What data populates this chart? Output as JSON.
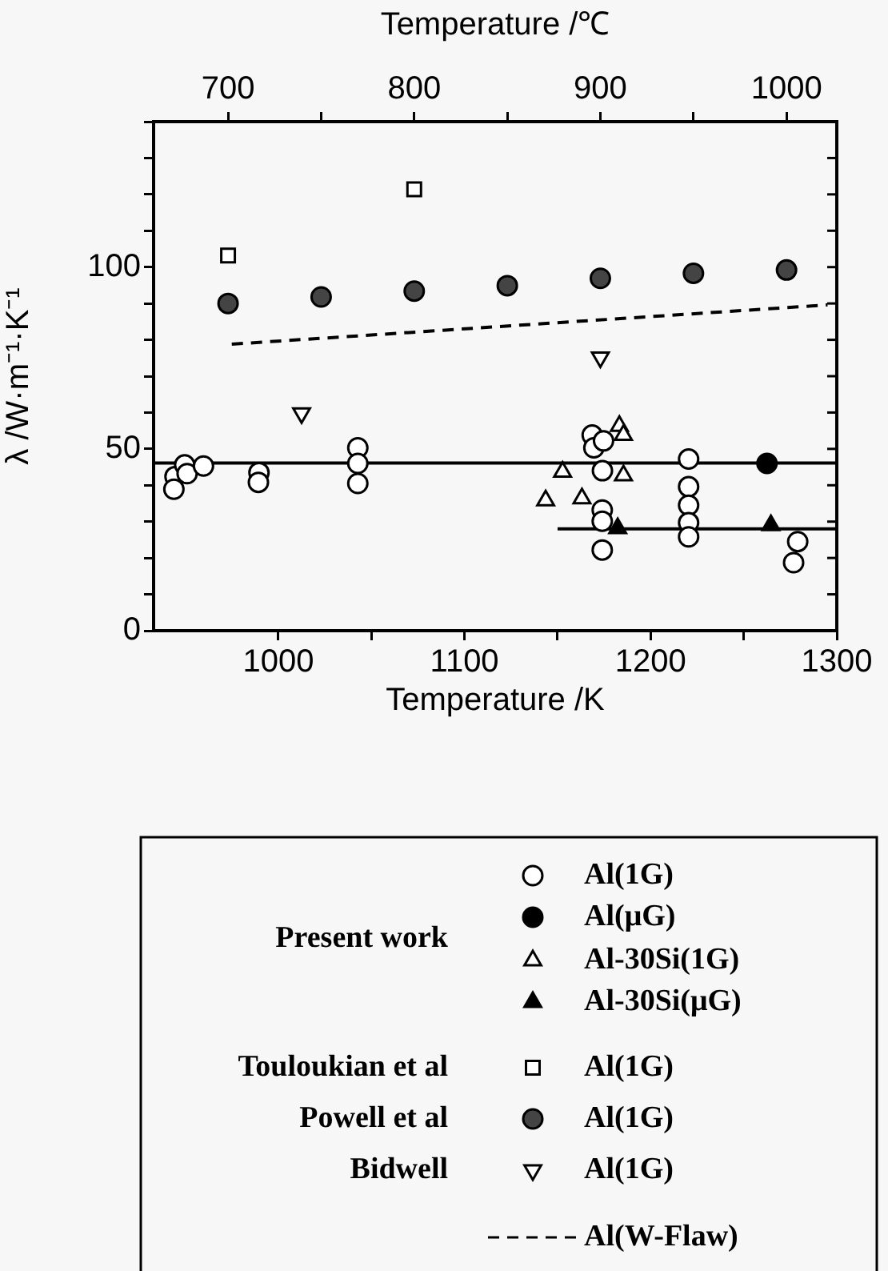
{
  "chart_data": {
    "type": "scatter",
    "xlabel": "Temperature /K",
    "x2label": "Temperature /℃",
    "ylabel": "λ /W·m⁻¹·K⁻¹",
    "xlim": [
      933,
      1300
    ],
    "xticks": [
      1000,
      {
        "value": 1050,
        "label": null
      },
      1100,
      {
        "value": 1150,
        "label": null
      },
      1200,
      {
        "value": 1250,
        "label": null
      },
      1300
    ],
    "x2lim": [
      660,
      1027
    ],
    "x2ticks": [
      700,
      {
        "value": 750,
        "label": null
      },
      800,
      {
        "value": 850,
        "label": null
      },
      900,
      {
        "value": 950,
        "label": null
      },
      1000
    ],
    "ylim": [
      0,
      140
    ],
    "yticks": [
      0,
      {
        "value": 10,
        "label": null
      },
      {
        "value": 20,
        "label": null
      },
      {
        "value": 30,
        "label": null
      },
      {
        "value": 40,
        "label": null
      },
      50,
      {
        "value": 60,
        "label": null
      },
      {
        "value": 70,
        "label": null
      },
      {
        "value": 80,
        "label": null
      },
      {
        "value": 90,
        "label": null
      },
      100,
      {
        "value": 110,
        "label": null
      },
      {
        "value": 120,
        "label": null
      },
      {
        "value": 130,
        "label": null
      },
      {
        "value": 140,
        "label": null
      }
    ],
    "grid": false,
    "legend": "bottom",
    "annotations": [
      "Present work",
      "Touloukian et al",
      "Powell et al",
      "Bidwell"
    ],
    "series": [
      {
        "name": "Al(1G)",
        "type": "scatter",
        "marker": "circle-open",
        "color": "#000000",
        "x": [
          944.5,
          943.9,
          949.7,
          951,
          959.8,
          989.6,
          989.3,
          1042.7,
          1042.7,
          1042.7,
          1168.6,
          1169.5,
          1174.7,
          1174.1,
          1174,
          1174,
          1174,
          1220.4,
          1220.4,
          1220.4,
          1220.4,
          1220.4,
          1279,
          1276.8
        ],
        "values": [
          42.4,
          38.9,
          45.6,
          43.2,
          45.3,
          43.5,
          40.8,
          50.3,
          46,
          40.5,
          53.8,
          50.3,
          52.2,
          44,
          33.2,
          30.1,
          22.2,
          47.2,
          39.6,
          34.5,
          29.7,
          25.8,
          24.5,
          18.7
        ]
      },
      {
        "name": "Al(μG)",
        "type": "scatter",
        "marker": "circle",
        "color": "#000000",
        "x": [
          1262.5
        ],
        "values": [
          46
        ]
      },
      {
        "name": "Al-30Si(1G)",
        "type": "scatter",
        "marker": "triangle-open",
        "color": "#000000",
        "x": [
          1143.6,
          1152.7,
          1163.1,
          1183.2,
          1185.4,
          1185.4
        ],
        "values": [
          35.8,
          43.7,
          36.4,
          56.3,
          53.8,
          42.7
        ]
      },
      {
        "name": "Al-30Si(μG)",
        "type": "scatter",
        "marker": "triangle",
        "color": "#000000",
        "x": [
          1182.3,
          1264.6
        ],
        "values": [
          28.2,
          29
        ]
      },
      {
        "name": "Al(1G)",
        "type": "scatter",
        "marker": "square-open",
        "color": "#000000",
        "x": [
          973,
          1073
        ],
        "values": [
          103.2,
          121.4
        ]
      },
      {
        "name": "Al(1G)",
        "type": "scatter",
        "marker": "circle-dot",
        "color": "#444444",
        "x": [
          973,
          1023,
          1073,
          1123,
          1173,
          1223,
          1273
        ],
        "values": [
          90,
          91.8,
          93.4,
          94.9,
          96.9,
          98.3,
          99.2
        ]
      },
      {
        "name": "Al(1G)",
        "type": "scatter",
        "marker": "triangle-down-open",
        "color": "#000000",
        "x": [
          1012.5,
          1173
        ],
        "values": [
          59.8,
          75.2
        ]
      },
      {
        "name": "Al(W-Flaw)",
        "type": "line",
        "marker": "none",
        "line_style": "dashed",
        "color": "#000000",
        "x": [
          975,
          1295
        ],
        "values": [
          78.8,
          89.6
        ]
      },
      {
        "type": "line",
        "marker": "none",
        "line_style": "solid",
        "color": "#000000",
        "x": [
          933,
          1300
        ],
        "values": [
          46.1,
          46.1
        ]
      },
      {
        "type": "line",
        "marker": "none",
        "line_style": "solid",
        "color": "#000000",
        "x": [
          1150,
          1300
        ],
        "values": [
          28,
          28
        ]
      }
    ]
  }
}
